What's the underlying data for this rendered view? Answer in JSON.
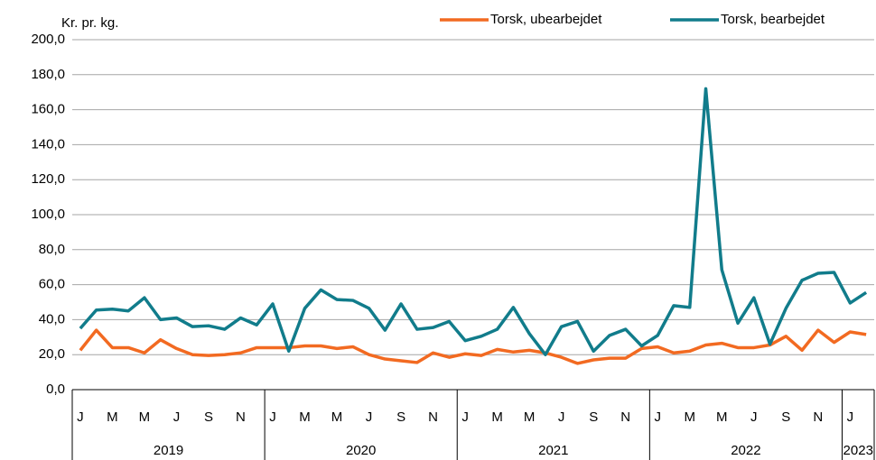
{
  "chart_data": {
    "type": "line",
    "y_label": "Kr. pr. kg.",
    "groups": [
      {
        "label": "2019",
        "categories": [
          "J",
          null,
          "M",
          null,
          "M",
          null,
          "J",
          null,
          "S",
          null,
          "N",
          null
        ]
      },
      {
        "label": "2020",
        "categories": [
          "J",
          null,
          "M",
          null,
          "M",
          null,
          "J",
          null,
          "S",
          null,
          "N",
          null
        ]
      },
      {
        "label": "2021",
        "categories": [
          "J",
          null,
          "M",
          null,
          "M",
          null,
          "J",
          null,
          "S",
          null,
          "N",
          null
        ]
      },
      {
        "label": "2022",
        "categories": [
          "J",
          null,
          "M",
          null,
          "M",
          null,
          "J",
          null,
          "S",
          null,
          "N",
          null
        ]
      },
      {
        "label": "2023",
        "categories": [
          "J",
          null
        ]
      }
    ],
    "series": [
      {
        "name": "Torsk, ubearbejdet",
        "color": "#f26a21",
        "values": [
          22.5,
          34,
          24,
          24,
          21,
          28.5,
          23.5,
          20,
          19.5,
          20,
          21,
          24,
          24,
          24,
          25,
          25,
          23.5,
          24.5,
          20,
          17.5,
          16.5,
          15.5,
          21,
          18.5,
          20.5,
          19.5,
          23,
          21.5,
          22.5,
          21,
          18.5,
          15,
          17,
          18,
          18,
          23.5,
          24.5,
          21,
          22,
          25.5,
          26.5,
          24,
          24,
          25.5,
          30.5,
          22.5,
          34,
          27,
          33,
          31.5
        ]
      },
      {
        "name": "Torsk, bearbejdet",
        "color": "#117c8b",
        "values": [
          35,
          45.5,
          46,
          45,
          52.5,
          40,
          41,
          36,
          36.5,
          34.5,
          41,
          37,
          49,
          22,
          46.5,
          57,
          51.5,
          51,
          46.5,
          34,
          49,
          34.5,
          35.5,
          39,
          28,
          30.5,
          34.5,
          47,
          32,
          20,
          36,
          39,
          22,
          31,
          34.5,
          25,
          31,
          48,
          47,
          172,
          68.5,
          38,
          52.5,
          26,
          46.5,
          62.5,
          66.5,
          67,
          49.5,
          55.5
        ]
      }
    ],
    "ylim": [
      0,
      200
    ],
    "yticks": [
      {
        "value": 0,
        "label": "0,0"
      },
      {
        "value": 20,
        "label": "20,0"
      },
      {
        "value": 40,
        "label": "40,0"
      },
      {
        "value": 60,
        "label": "60,0"
      },
      {
        "value": 80,
        "label": "80,0"
      },
      {
        "value": 100,
        "label": "100,0"
      },
      {
        "value": 120,
        "label": "120,0"
      },
      {
        "value": 140,
        "label": "140,0"
      },
      {
        "value": 160,
        "label": "160,0"
      },
      {
        "value": 180,
        "label": "180,0"
      },
      {
        "value": 200,
        "label": "200,0"
      }
    ],
    "grid": true,
    "legend": "top-right"
  }
}
